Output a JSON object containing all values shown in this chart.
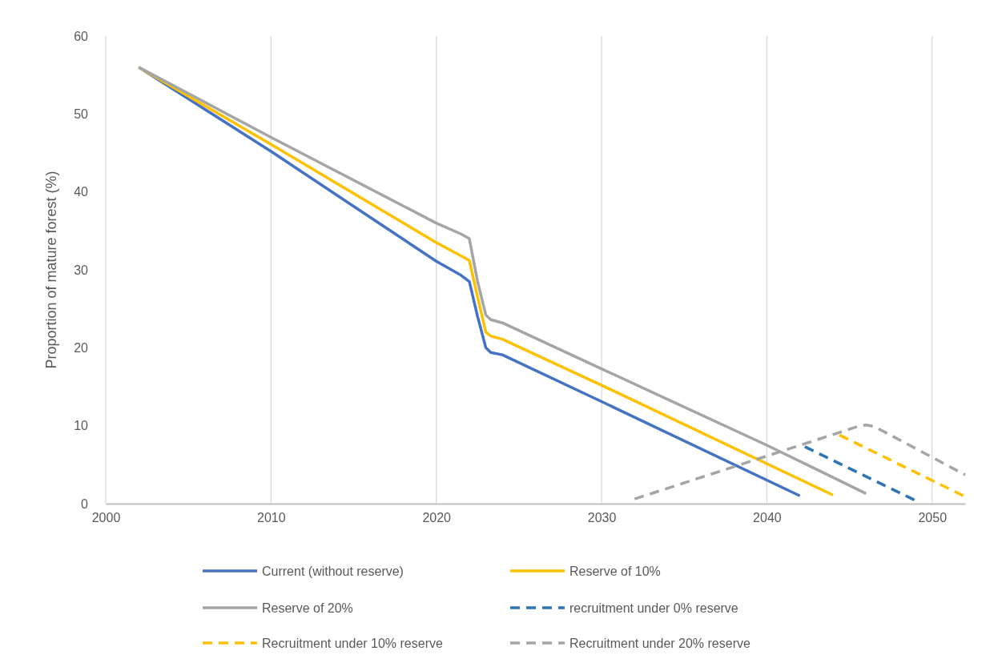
{
  "chart_data": {
    "type": "line",
    "ylabel": "Proportion of mature forest  (%)",
    "xlim": [
      2000,
      2052
    ],
    "xticks": [
      2000,
      2010,
      2020,
      2030,
      2040,
      2050
    ],
    "ylim": [
      0,
      60
    ],
    "yticks": [
      0,
      10,
      20,
      30,
      40,
      50,
      60
    ],
    "grid": "x",
    "legend": "bottom",
    "series": [
      {
        "name": "Current (without reserve)",
        "color": "#4472c4",
        "line_style": "solid",
        "x": [
          2002,
          2010,
          2020,
          2021.5,
          2022,
          2022.5,
          2023,
          2023.3,
          2024,
          2030,
          2042
        ],
        "values": [
          56,
          45.2,
          31.1,
          29.3,
          28.5,
          24,
          20,
          19.4,
          19.1,
          13.1,
          1
        ]
      },
      {
        "name": "Reserve of 10%",
        "color": "#ffc000",
        "line_style": "solid",
        "x": [
          2002,
          2010,
          2020,
          2021.5,
          2022,
          2022.5,
          2023,
          2023.3,
          2024,
          2030,
          2044
        ],
        "values": [
          56,
          46.1,
          33.5,
          31.8,
          31.2,
          26.5,
          22,
          21.5,
          21.1,
          15.2,
          1.1
        ]
      },
      {
        "name": "Reserve of 20%",
        "color": "#a5a5a5",
        "line_style": "solid",
        "x": [
          2002,
          2010,
          2020,
          2021.5,
          2022,
          2022.5,
          2023,
          2023.3,
          2024,
          2030,
          2040,
          2046
        ],
        "values": [
          56,
          47,
          36,
          34.6,
          34,
          28.5,
          24.2,
          23.6,
          23.2,
          17.3,
          7.5,
          1.3
        ]
      },
      {
        "name": "recruitment under 0% reserve",
        "color": "#2e75b6",
        "line_style": "dashed",
        "x": [
          2042.3,
          2049
        ],
        "values": [
          7.3,
          0.4
        ]
      },
      {
        "name": "Recruitment under 10% reserve",
        "color": "#ffc000",
        "line_style": "dashed",
        "x": [
          2044.4,
          2052
        ],
        "values": [
          8.8,
          0.9
        ]
      },
      {
        "name": "Recruitment under 20% reserve",
        "color": "#a5a5a5",
        "line_style": "dashed",
        "x": [
          2032,
          2045.5,
          2046,
          2046.5,
          2052
        ],
        "values": [
          0.6,
          9.9,
          10.1,
          9.9,
          3.7
        ]
      }
    ]
  }
}
